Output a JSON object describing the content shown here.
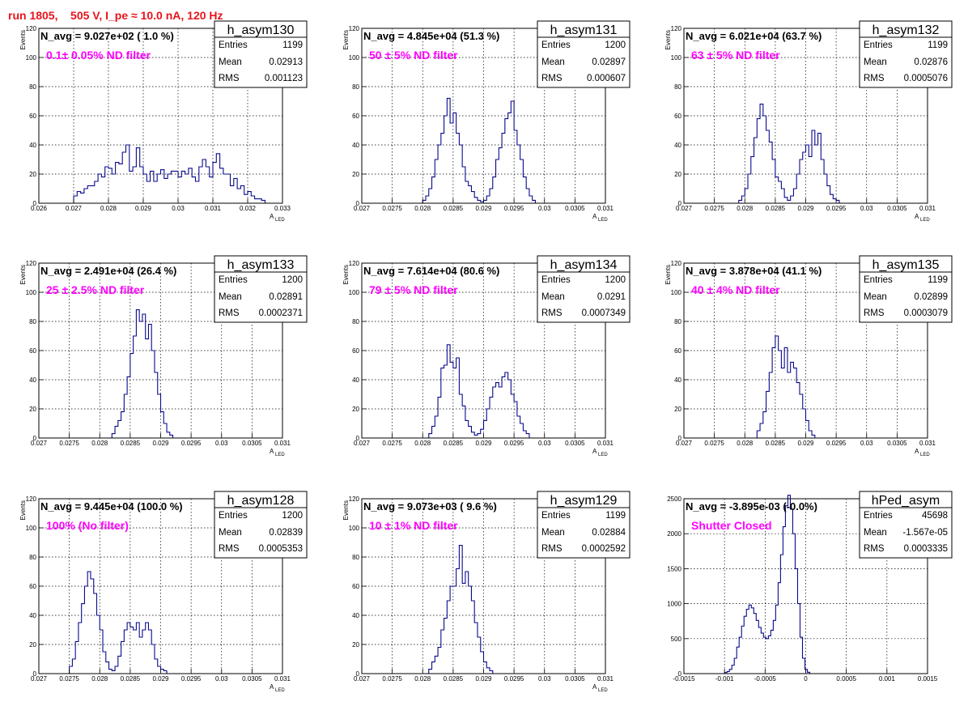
{
  "title": "run 1805,    505 V, I_pe ≈ 10.0 nA, 120 Hz",
  "colors": {
    "title": "#e8141d",
    "histogram": "#0a0a8c",
    "filter_text": "#ff00ff",
    "grid": "#000000"
  },
  "stat_labels": {
    "entries": "Entries",
    "mean": "Mean",
    "rms": "RMS"
  },
  "axis_labels": {
    "y": "Events",
    "x_main": "A",
    "x_sub": "LED"
  },
  "chart_data": [
    {
      "type": "histogram",
      "name": "h_asym130",
      "navg_text": "N_avg = 9.027e+02 ( 1.0 %)",
      "filter_text": "0.1± 0.05% ND filter",
      "stats": {
        "entries": "1199",
        "mean": "0.02913",
        "rms": "0.001123"
      },
      "xlim": [
        0.026,
        0.033
      ],
      "ylim": [
        0,
        120
      ],
      "xticks": [
        "0.026",
        "0.027",
        "0.028",
        "0.029",
        "0.03",
        "0.031",
        "0.032",
        "0.033"
      ],
      "yticks": [
        "0",
        "20",
        "40",
        "60",
        "80",
        "100",
        "120"
      ],
      "xlabel": "A",
      "xlabel_sub": "LED",
      "ylabel": "Events",
      "bin_start": 0.027,
      "bin_width": 0.0001,
      "values": [
        5,
        8,
        7,
        10,
        12,
        12,
        15,
        20,
        18,
        25,
        24,
        20,
        28,
        27,
        35,
        40,
        22,
        25,
        38,
        25,
        20,
        15,
        22,
        15,
        20,
        23,
        17,
        20,
        22,
        22,
        18,
        22,
        20,
        24,
        18,
        15,
        25,
        30,
        25,
        18,
        28,
        34,
        24,
        20,
        20,
        12,
        17,
        10,
        12,
        6,
        8,
        5,
        3,
        3,
        2
      ]
    },
    {
      "type": "histogram",
      "name": "h_asym131",
      "navg_text": "N_avg = 4.845e+04 (51.3 %)",
      "filter_text": "50 ± 5% ND filter",
      "stats": {
        "entries": "1200",
        "mean": "0.02897",
        "rms": "0.000607"
      },
      "xlim": [
        0.027,
        0.031
      ],
      "ylim": [
        0,
        120
      ],
      "xticks": [
        "0.027",
        "0.0275",
        "0.028",
        "0.0285",
        "0.029",
        "0.0295",
        "0.03",
        "0.0305",
        "0.031"
      ],
      "yticks": [
        "0",
        "20",
        "40",
        "60",
        "80",
        "100",
        "120"
      ],
      "xlabel": "A",
      "xlabel_sub": "LED",
      "ylabel": "Events",
      "bin_start": 0.028,
      "bin_width": 5e-05,
      "values": [
        2,
        5,
        10,
        18,
        30,
        40,
        48,
        60,
        72,
        55,
        62,
        48,
        40,
        25,
        15,
        12,
        8,
        4,
        2,
        1,
        2,
        5,
        10,
        18,
        30,
        38,
        48,
        58,
        62,
        70,
        50,
        40,
        30,
        18,
        10,
        5,
        2
      ]
    },
    {
      "type": "histogram",
      "name": "h_asym132",
      "navg_text": "N_avg = 6.021e+04 (63.7 %)",
      "filter_text": "63 ± 5% ND filter",
      "stats": {
        "entries": "1199",
        "mean": "0.02876",
        "rms": "0.0005076"
      },
      "xlim": [
        0.027,
        0.031
      ],
      "ylim": [
        0,
        120
      ],
      "xticks": [
        "0.027",
        "0.0275",
        "0.028",
        "0.0285",
        "0.029",
        "0.0295",
        "0.03",
        "0.0305",
        "0.031"
      ],
      "yticks": [
        "0",
        "20",
        "40",
        "60",
        "80",
        "100",
        "120"
      ],
      "xlabel": "A",
      "xlabel_sub": "LED",
      "ylabel": "Events",
      "bin_start": 0.0279,
      "bin_width": 5e-05,
      "values": [
        2,
        5,
        10,
        20,
        32,
        45,
        58,
        68,
        60,
        50,
        42,
        30,
        18,
        15,
        10,
        4,
        2,
        5,
        10,
        20,
        30,
        35,
        40,
        32,
        50,
        40,
        48,
        30,
        20,
        12,
        6,
        3,
        2
      ]
    },
    {
      "type": "histogram",
      "name": "h_asym133",
      "navg_text": "N_avg = 2.491e+04 (26.4 %)",
      "filter_text": "25 ± 2.5% ND filter",
      "stats": {
        "entries": "1200",
        "mean": "0.02891",
        "rms": "0.0002371"
      },
      "xlim": [
        0.027,
        0.031
      ],
      "ylim": [
        0,
        120
      ],
      "xticks": [
        "0.027",
        "0.0275",
        "0.028",
        "0.0285",
        "0.029",
        "0.0295",
        "0.03",
        "0.0305",
        "0.031"
      ],
      "yticks": [
        "0",
        "20",
        "40",
        "60",
        "80",
        "100",
        "120"
      ],
      "xlabel": "A",
      "xlabel_sub": "LED",
      "ylabel": "Events",
      "bin_start": 0.0282,
      "bin_width": 5e-05,
      "values": [
        3,
        8,
        12,
        18,
        30,
        42,
        58,
        70,
        88,
        80,
        85,
        68,
        78,
        60,
        45,
        30,
        18,
        10,
        4,
        2
      ]
    },
    {
      "type": "histogram",
      "name": "h_asym134",
      "navg_text": "N_avg = 7.614e+04 (80.6 %)",
      "filter_text": "79 ± 5% ND filter",
      "stats": {
        "entries": "1200",
        "mean": "0.0291",
        "rms": "0.0007349"
      },
      "xlim": [
        0.027,
        0.031
      ],
      "ylim": [
        0,
        120
      ],
      "xticks": [
        "0.027",
        "0.0275",
        "0.028",
        "0.0285",
        "0.029",
        "0.0295",
        "0.03",
        "0.0305",
        "0.031"
      ],
      "yticks": [
        "0",
        "20",
        "40",
        "60",
        "80",
        "100",
        "120"
      ],
      "xlabel": "A",
      "xlabel_sub": "LED",
      "ylabel": "Events",
      "bin_start": 0.0281,
      "bin_width": 5e-05,
      "values": [
        3,
        8,
        15,
        28,
        48,
        50,
        64,
        52,
        48,
        55,
        30,
        22,
        12,
        8,
        4,
        2,
        3,
        6,
        12,
        20,
        28,
        35,
        38,
        35,
        42,
        45,
        40,
        30,
        25,
        15,
        10,
        5,
        3
      ]
    },
    {
      "type": "histogram",
      "name": "h_asym135",
      "navg_text": "N_avg = 3.878e+04 (41.1 %)",
      "filter_text": "40 ± 4% ND filter",
      "stats": {
        "entries": "1199",
        "mean": "0.02899",
        "rms": "0.0003079"
      },
      "xlim": [
        0.027,
        0.031
      ],
      "ylim": [
        0,
        120
      ],
      "xticks": [
        "0.027",
        "0.0275",
        "0.028",
        "0.0285",
        "0.029",
        "0.0295",
        "0.03",
        "0.0305",
        "0.031"
      ],
      "yticks": [
        "0",
        "20",
        "40",
        "60",
        "80",
        "100",
        "120"
      ],
      "xlabel": "A",
      "xlabel_sub": "LED",
      "ylabel": "Events",
      "bin_start": 0.0282,
      "bin_width": 5e-05,
      "values": [
        5,
        10,
        18,
        32,
        45,
        62,
        70,
        60,
        48,
        62,
        45,
        52,
        48,
        38,
        30,
        20,
        12,
        5,
        2
      ]
    },
    {
      "type": "histogram",
      "name": "h_asym128",
      "navg_text": "N_avg = 9.445e+04 (100.0 %)",
      "filter_text": "100% (No filter)",
      "stats": {
        "entries": "1200",
        "mean": "0.02839",
        "rms": "0.0005353"
      },
      "xlim": [
        0.027,
        0.031
      ],
      "ylim": [
        0,
        120
      ],
      "xticks": [
        "0.027",
        "0.0275",
        "0.028",
        "0.0285",
        "0.029",
        "0.0295",
        "0.03",
        "0.0305",
        "0.031"
      ],
      "yticks": [
        "0",
        "20",
        "40",
        "60",
        "80",
        "100",
        "120"
      ],
      "xlabel": "A",
      "xlabel_sub": "LED",
      "ylabel": "Events",
      "bin_start": 0.0275,
      "bin_width": 5e-05,
      "values": [
        5,
        10,
        22,
        35,
        48,
        60,
        70,
        65,
        55,
        40,
        30,
        15,
        8,
        3,
        2,
        5,
        12,
        22,
        30,
        35,
        32,
        30,
        35,
        25,
        30,
        35,
        30,
        20,
        10,
        5,
        3,
        2
      ]
    },
    {
      "type": "histogram",
      "name": "h_asym129",
      "navg_text": "N_avg = 9.073e+03 ( 9.6 %)",
      "filter_text": "10 ± 1% ND filter",
      "stats": {
        "entries": "1199",
        "mean": "0.02884",
        "rms": "0.0002592"
      },
      "xlim": [
        0.027,
        0.031
      ],
      "ylim": [
        0,
        120
      ],
      "xticks": [
        "0.027",
        "0.0275",
        "0.028",
        "0.0285",
        "0.029",
        "0.0295",
        "0.03",
        "0.0305",
        "0.031"
      ],
      "yticks": [
        "0",
        "20",
        "40",
        "60",
        "80",
        "100",
        "120"
      ],
      "xlabel": "A",
      "xlabel_sub": "LED",
      "ylabel": "Events",
      "bin_start": 0.0281,
      "bin_width": 5e-05,
      "values": [
        3,
        8,
        12,
        18,
        30,
        38,
        50,
        60,
        60,
        72,
        88,
        62,
        70,
        60,
        50,
        35,
        25,
        15,
        8,
        4,
        2
      ]
    },
    {
      "type": "histogram",
      "name": "hPed_asym",
      "navg_text": "N_avg = -3.895e-03 (-0.0%)",
      "filter_text": "Shutter Closed",
      "stats": {
        "entries": "45698",
        "mean": "-1.567e-05",
        "rms": "0.0003335"
      },
      "xlim": [
        -0.0015,
        0.0015
      ],
      "ylim": [
        0,
        2500
      ],
      "xticks": [
        "-0.0015",
        "-0.001",
        "-0.0005",
        "0",
        "0.0005",
        "0.001",
        "0.0015"
      ],
      "yticks": [
        "0",
        "500",
        "1000",
        "1500",
        "2000",
        "2500"
      ],
      "xlabel": "",
      "xlabel_sub": "",
      "ylabel": "",
      "bin_start": -0.001,
      "bin_width": 3e-05,
      "values": [
        15,
        30,
        60,
        120,
        220,
        380,
        520,
        680,
        820,
        920,
        980,
        940,
        860,
        760,
        660,
        580,
        520,
        500,
        540,
        620,
        760,
        980,
        1300,
        1700,
        2100,
        2400,
        2550,
        2350,
        2000,
        1500,
        1000,
        520,
        220,
        60,
        20
      ]
    }
  ]
}
